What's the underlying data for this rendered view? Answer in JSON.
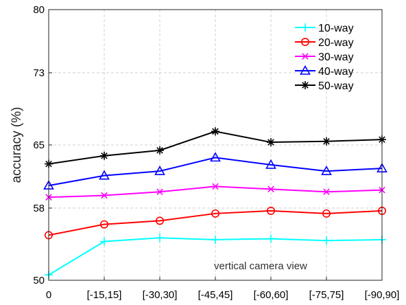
{
  "chart_data": {
    "type": "line",
    "xlabel": "",
    "ylabel": "accuracy (%)",
    "categories": [
      "0",
      "[-15,15]",
      "[-30,30]",
      "[-45,45]",
      "[-60,60]",
      "[-75,75]",
      "[-90,90]"
    ],
    "ylim": [
      50,
      80
    ],
    "yticks": [
      50,
      58,
      65,
      73,
      80
    ],
    "grid": true,
    "legend_position": "top-right",
    "annotation": "vertical camera view",
    "series": [
      {
        "name": "10-way",
        "color": "#00ffff",
        "marker": "plus",
        "values": [
          50.6,
          54.3,
          54.7,
          54.5,
          54.6,
          54.4,
          54.5
        ]
      },
      {
        "name": "20-way",
        "color": "#ff0000",
        "marker": "circle",
        "values": [
          55.0,
          56.2,
          56.6,
          57.4,
          57.7,
          57.4,
          57.7
        ]
      },
      {
        "name": "30-way",
        "color": "#ff00ff",
        "marker": "x",
        "values": [
          59.2,
          59.4,
          59.8,
          60.4,
          60.1,
          59.8,
          60.0
        ]
      },
      {
        "name": "40-way",
        "color": "#0000ff",
        "marker": "triangle",
        "values": [
          60.5,
          61.6,
          62.1,
          63.6,
          62.8,
          62.1,
          62.4
        ]
      },
      {
        "name": "50-way",
        "color": "#000000",
        "marker": "asterisk",
        "values": [
          62.9,
          63.8,
          64.4,
          66.5,
          65.3,
          65.4,
          65.6
        ]
      }
    ]
  }
}
